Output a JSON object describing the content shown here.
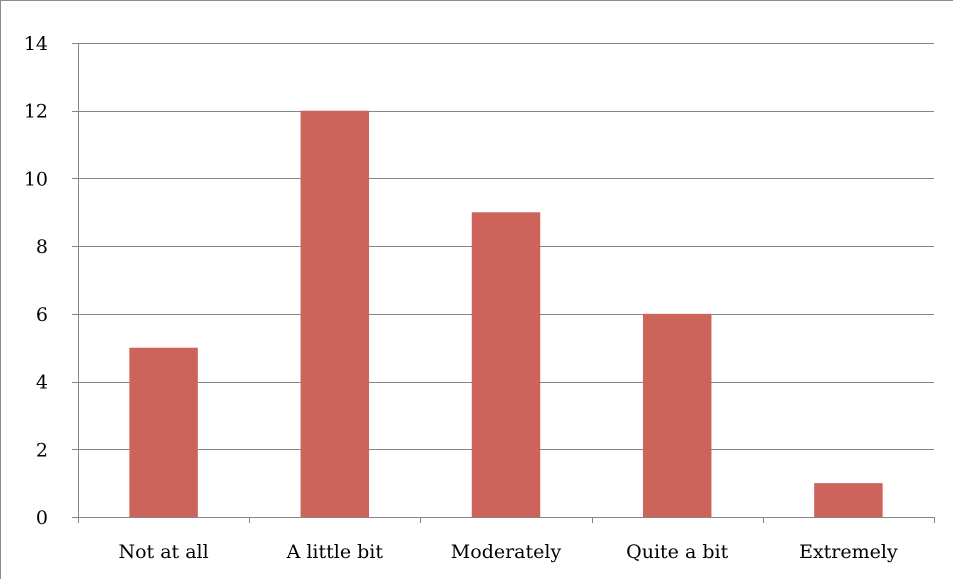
{
  "chart_data": {
    "type": "bar",
    "categories": [
      "Not at all",
      "A little bit",
      "Moderately",
      "Quite a bit",
      "Extremely"
    ],
    "values": [
      5,
      12,
      9,
      6,
      1
    ],
    "title": "",
    "xlabel": "",
    "ylabel": "",
    "ylim": [
      0,
      14
    ],
    "yticks": [
      "0",
      "2",
      "4",
      "6",
      "8",
      "10",
      "12",
      "14"
    ],
    "grid": true,
    "legend": "none",
    "bar_color": "#cd645c",
    "grid_color": "#868686"
  }
}
